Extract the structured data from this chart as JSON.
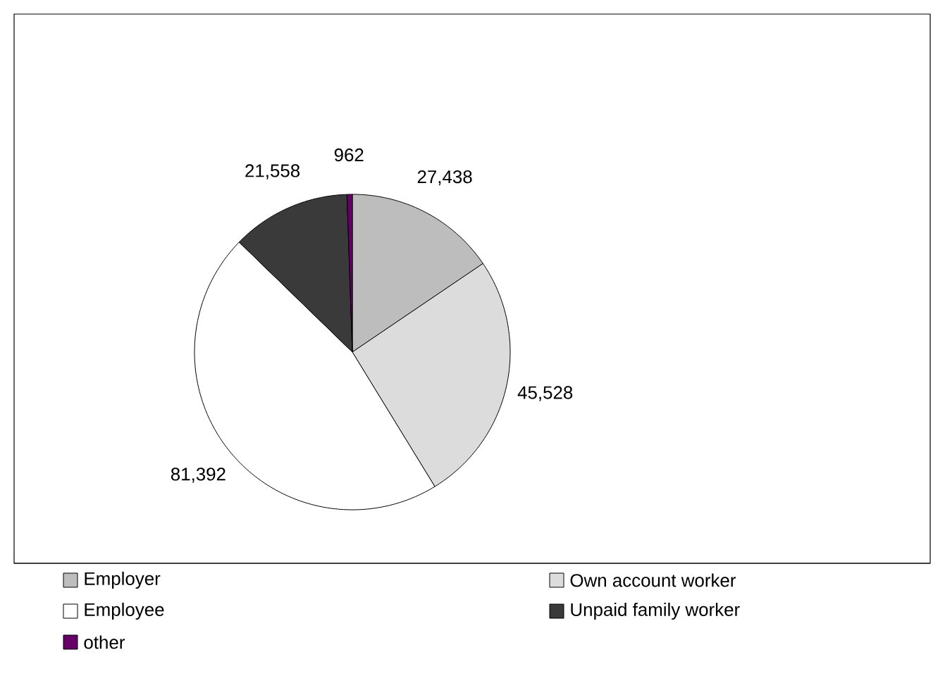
{
  "chart_data": {
    "type": "pie",
    "categories": [
      "Employer",
      "Own account worker",
      "Employee",
      "Unpaid family worker",
      "other"
    ],
    "values": [
      27438,
      45528,
      81392,
      21558,
      962
    ],
    "value_labels": [
      "27,438",
      "45,528",
      "81,392",
      "21,558",
      "962"
    ],
    "colors": [
      "#bdbdbd",
      "#dcdcdc",
      "#ffffff",
      "#3a3a3a",
      "#660066"
    ],
    "legend": "bottom"
  }
}
